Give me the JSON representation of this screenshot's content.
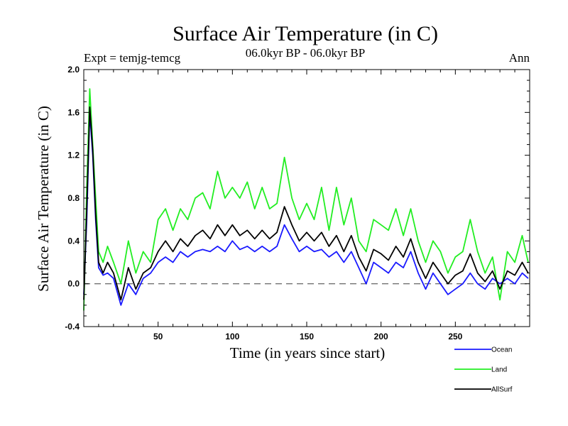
{
  "chart_data": {
    "type": "line",
    "title": "Surface Air Temperature (in C)",
    "subtitle_left": "Expt = temjg-temcg",
    "subtitle_center": "06.0kyr BP - 06.0kyr BP",
    "subtitle_right": "Ann",
    "xlabel": "Time (in years since start)",
    "ylabel": "Surface Air Temperature (in C)",
    "xlim": [
      0,
      300
    ],
    "ylim": [
      -0.4,
      2.0
    ],
    "xticks": [
      50,
      100,
      150,
      200,
      250
    ],
    "yticks": [
      -0.4,
      0.0,
      0.4,
      0.8,
      1.2,
      1.6,
      2.0
    ],
    "ytick_labels": [
      "-0.4",
      "0.0",
      "0.4",
      "0.8",
      "1.2",
      "1.6",
      "2.0"
    ],
    "zero_line": 0.0,
    "x": [
      0,
      2,
      4,
      6,
      8,
      10,
      13,
      16,
      20,
      25,
      30,
      35,
      40,
      45,
      50,
      55,
      60,
      65,
      70,
      75,
      80,
      85,
      90,
      95,
      100,
      105,
      110,
      115,
      120,
      125,
      130,
      135,
      140,
      145,
      150,
      155,
      160,
      165,
      170,
      175,
      180,
      185,
      190,
      195,
      200,
      205,
      210,
      215,
      220,
      225,
      230,
      235,
      240,
      245,
      250,
      255,
      260,
      265,
      270,
      275,
      280,
      285,
      290,
      295,
      299
    ],
    "series": [
      {
        "name": "Ocean",
        "color": "#1a1aff",
        "values": [
          -0.1,
          0.6,
          1.6,
          1.2,
          0.6,
          0.15,
          0.08,
          0.1,
          0.05,
          -0.2,
          0.0,
          -0.1,
          0.05,
          0.1,
          0.2,
          0.25,
          0.2,
          0.3,
          0.25,
          0.3,
          0.32,
          0.3,
          0.35,
          0.3,
          0.4,
          0.32,
          0.35,
          0.3,
          0.35,
          0.3,
          0.35,
          0.55,
          0.42,
          0.3,
          0.35,
          0.3,
          0.32,
          0.25,
          0.3,
          0.2,
          0.3,
          0.15,
          0.0,
          0.2,
          0.15,
          0.1,
          0.2,
          0.15,
          0.3,
          0.1,
          -0.05,
          0.1,
          0.0,
          -0.1,
          -0.05,
          0.0,
          0.1,
          0.0,
          -0.05,
          0.05,
          0.0,
          0.05,
          0.0,
          0.1,
          0.05
        ]
      },
      {
        "name": "Land",
        "color": "#22ee22",
        "values": [
          -0.25,
          0.9,
          1.82,
          1.3,
          0.8,
          0.3,
          0.2,
          0.35,
          0.2,
          0.0,
          0.4,
          0.1,
          0.3,
          0.2,
          0.6,
          0.7,
          0.5,
          0.7,
          0.6,
          0.8,
          0.85,
          0.7,
          1.05,
          0.8,
          0.9,
          0.8,
          0.95,
          0.7,
          0.9,
          0.7,
          0.75,
          1.18,
          0.8,
          0.6,
          0.75,
          0.6,
          0.9,
          0.5,
          0.9,
          0.55,
          0.8,
          0.4,
          0.3,
          0.6,
          0.55,
          0.5,
          0.7,
          0.45,
          0.7,
          0.4,
          0.2,
          0.4,
          0.3,
          0.1,
          0.25,
          0.3,
          0.6,
          0.3,
          0.1,
          0.25,
          -0.15,
          0.3,
          0.2,
          0.45,
          0.2
        ]
      },
      {
        "name": "AllSurf",
        "color": "#000000",
        "values": [
          -0.15,
          0.7,
          1.65,
          1.25,
          0.65,
          0.2,
          0.1,
          0.2,
          0.1,
          -0.15,
          0.15,
          -0.05,
          0.1,
          0.15,
          0.3,
          0.4,
          0.3,
          0.42,
          0.35,
          0.45,
          0.5,
          0.42,
          0.55,
          0.45,
          0.55,
          0.45,
          0.5,
          0.42,
          0.5,
          0.42,
          0.48,
          0.72,
          0.55,
          0.4,
          0.48,
          0.4,
          0.48,
          0.35,
          0.45,
          0.3,
          0.45,
          0.25,
          0.12,
          0.32,
          0.28,
          0.22,
          0.35,
          0.25,
          0.42,
          0.2,
          0.05,
          0.2,
          0.1,
          0.0,
          0.08,
          0.12,
          0.28,
          0.1,
          0.02,
          0.12,
          -0.05,
          0.12,
          0.08,
          0.2,
          0.1
        ]
      }
    ],
    "legend": [
      {
        "name": "Ocean",
        "color": "#1a1aff"
      },
      {
        "name": "Land",
        "color": "#22ee22"
      },
      {
        "name": "AllSurf",
        "color": "#000000"
      }
    ],
    "legend_position": "bottom-right"
  }
}
